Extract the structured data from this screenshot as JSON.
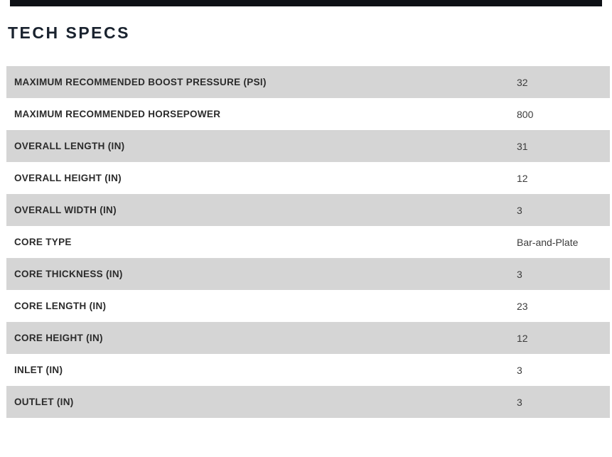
{
  "page": {
    "title": "TECH SPECS"
  },
  "colors": {
    "top_bar": "#0e1116",
    "heading_text": "#19222e",
    "row_alt_bg": "#d5d5d5",
    "row_bg": "#ffffff",
    "label_text": "#2b2b2b",
    "value_text": "#3c3c3c"
  },
  "spec_table": {
    "rows": [
      {
        "label": "MAXIMUM RECOMMENDED BOOST PRESSURE (PSI)",
        "value": "32"
      },
      {
        "label": "MAXIMUM RECOMMENDED HORSEPOWER",
        "value": "800"
      },
      {
        "label": "OVERALL LENGTH (IN)",
        "value": "31"
      },
      {
        "label": "OVERALL HEIGHT (IN)",
        "value": "12"
      },
      {
        "label": "OVERALL WIDTH (IN)",
        "value": "3"
      },
      {
        "label": "CORE TYPE",
        "value": "Bar-and-Plate"
      },
      {
        "label": "CORE THICKNESS (IN)",
        "value": "3"
      },
      {
        "label": "CORE LENGTH (IN)",
        "value": "23"
      },
      {
        "label": "CORE HEIGHT (IN)",
        "value": "12"
      },
      {
        "label": "INLET (IN)",
        "value": "3"
      },
      {
        "label": "OUTLET (IN)",
        "value": "3"
      }
    ]
  }
}
